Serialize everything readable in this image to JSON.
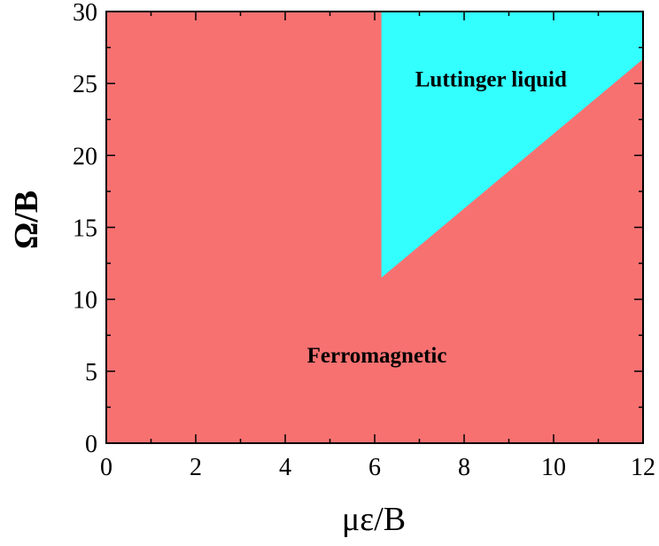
{
  "chart_data": {
    "type": "area",
    "title": "",
    "xlabel": "με/B",
    "ylabel": "Ω/B",
    "xlim": [
      0,
      12
    ],
    "ylim": [
      0,
      30
    ],
    "xticks": [
      0,
      2,
      4,
      6,
      8,
      10,
      12
    ],
    "yticks": [
      0,
      5,
      10,
      15,
      20,
      25,
      30
    ],
    "xtick_labels": [
      "0",
      "2",
      "4",
      "6",
      "8",
      "10",
      "12"
    ],
    "ytick_labels": [
      "0",
      "5",
      "10",
      "15",
      "20",
      "25",
      "30"
    ],
    "x_minor_step": 1,
    "y_minor_step": 2.5,
    "grid": false,
    "regions": [
      {
        "name": "Ferromagnetic",
        "color": "#F87171",
        "polygon": [
          [
            0,
            0
          ],
          [
            12,
            0
          ],
          [
            12,
            30
          ],
          [
            0,
            30
          ]
        ]
      },
      {
        "name": "Luttinger liquid",
        "color": "#33FFFF",
        "polygon": [
          [
            6.15,
            11.5
          ],
          [
            12,
            26.7
          ],
          [
            12,
            30
          ],
          [
            6.15,
            30
          ]
        ]
      }
    ],
    "annotations": [
      {
        "text": "Luttinger liquid",
        "x": 8.6,
        "y": 25.3
      },
      {
        "text": "Ferromagnetic",
        "x": 6.05,
        "y": 6.1
      }
    ]
  }
}
